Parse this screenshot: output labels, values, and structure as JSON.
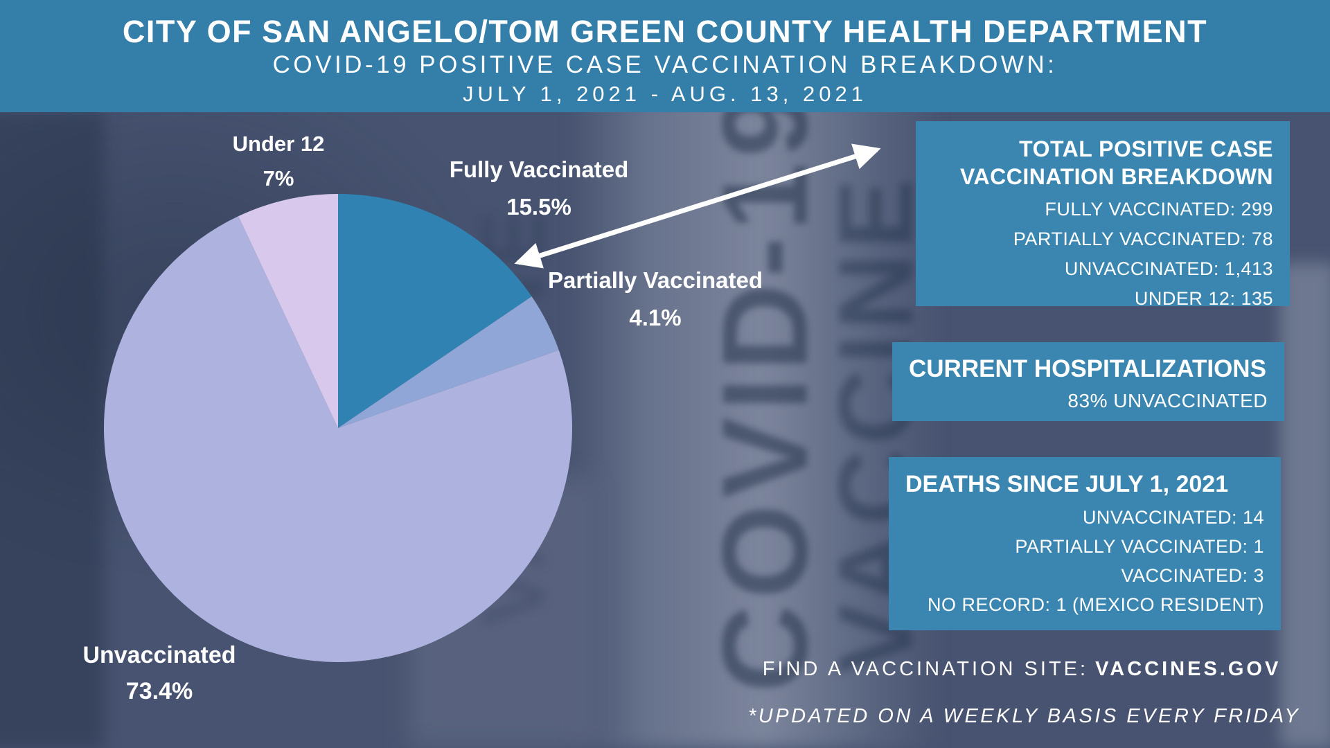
{
  "header": {
    "line1": "CITY OF SAN ANGELO/TOM GREEN COUNTY HEALTH DEPARTMENT",
    "line2": "COVID-19 POSITIVE CASE VACCINATION BREAKDOWN:",
    "line3": "JULY 1, 2021 - AUG. 13, 2021"
  },
  "chart_data": {
    "type": "pie",
    "title": "COVID-19 Positive Case Vaccination Breakdown: July 1, 2021 - Aug. 13, 2021",
    "direction": "clockwise",
    "start_angle_deg": 0,
    "legend_position": "around-pie",
    "slices": [
      {
        "label": "Fully Vaccinated",
        "value": 15.5,
        "pct_label": "15.5%",
        "color": "#2f82b1"
      },
      {
        "label": "Partially Vaccinated",
        "value": 4.1,
        "pct_label": "4.1%",
        "color": "#8fa6d6"
      },
      {
        "label": "Unvaccinated",
        "value": 73.4,
        "pct_label": "73.4%",
        "color": "#aeb2de"
      },
      {
        "label": "Under 12",
        "value": 7,
        "pct_label": "7%",
        "color": "#d8c9ec"
      }
    ]
  },
  "breakdown_box": {
    "title_line1": "TOTAL POSITIVE CASE",
    "title_line2": "VACCINATION BREAKDOWN",
    "items": [
      "FULLY VACCINATED: 299",
      "PARTIALLY VACCINATED: 78",
      "UNVACCINATED: 1,413",
      "UNDER 12: 135"
    ]
  },
  "hospitalizations_box": {
    "title": "CURRENT HOSPITALIZATIONS",
    "value": "83% UNVACCINATED"
  },
  "deaths_box": {
    "title": "DEATHS SINCE JULY 1, 2021",
    "items": [
      "UNVACCINATED: 14",
      "PARTIALLY VACCINATED: 1",
      "VACCINATED: 3",
      "NO RECORD: 1 (MEXICO RESIDENT)"
    ]
  },
  "footer": {
    "find_site_prefix": "FIND A VACCINATION SITE:",
    "find_site_link": "VACCINES.GOV",
    "updated_note": "*UPDATED ON A WEEKLY BASIS EVERY FRIDAY"
  },
  "background": {
    "vial_label_1": "COVID-19",
    "vial_label_2": "VACCINE"
  },
  "colors": {
    "banner_blue": "#347eaa",
    "box_blue": "#3a86b0",
    "background_base": "#475370",
    "text_white": "#ffffff",
    "arrow_white": "#ffffff",
    "slice_fully_vaccinated": "#2f82b1",
    "slice_partially_vaccinated": "#8fa6d6",
    "slice_unvaccinated": "#aeb2de",
    "slice_under_12": "#d8c9ec"
  }
}
